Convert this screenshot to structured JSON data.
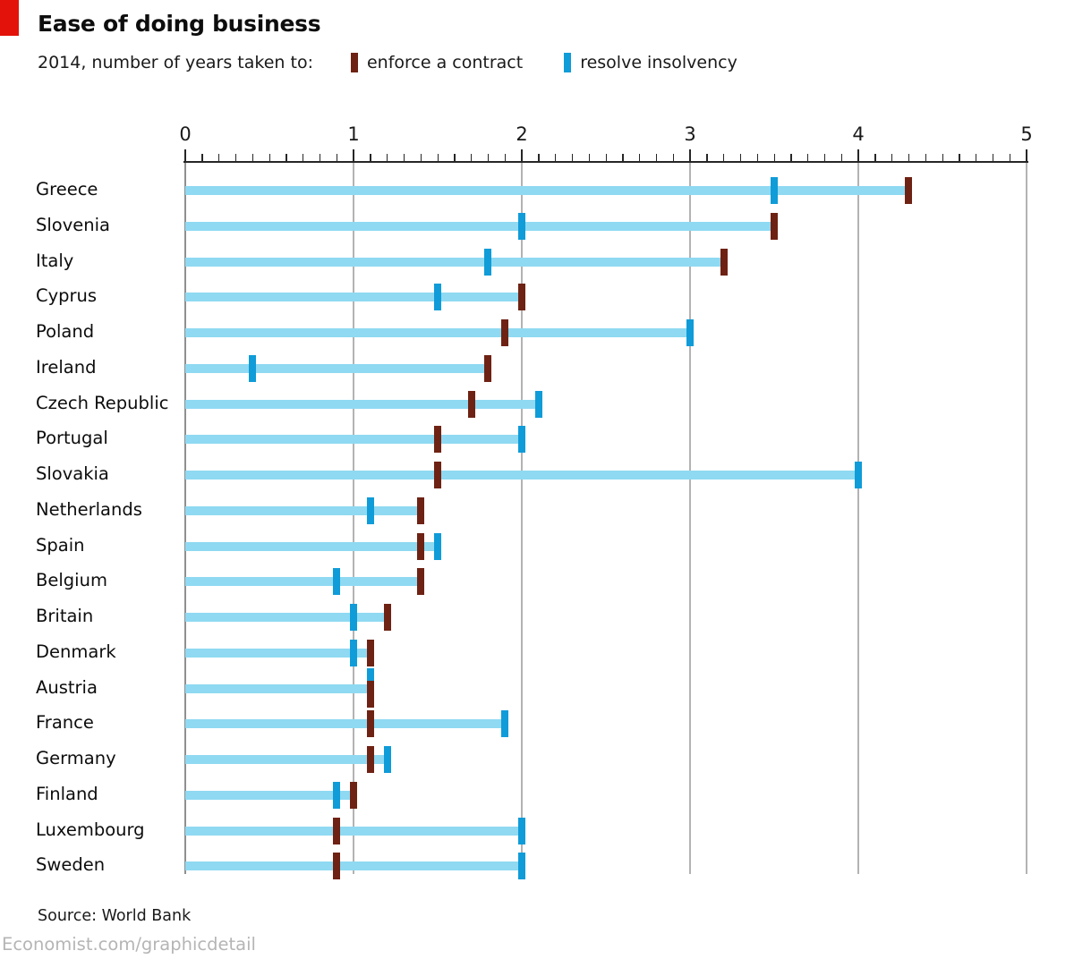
{
  "header": {
    "title": "Ease of doing business",
    "subtitle": "2014, number of years taken to:",
    "legend": [
      {
        "key": "contract",
        "label": "enforce a contract",
        "color": "#6E2213"
      },
      {
        "key": "insolvency",
        "label": "resolve insolvency",
        "color": "#0F9CD8"
      }
    ]
  },
  "footer": {
    "source": "Source: World Bank",
    "credit": "Economist.com/graphicdetail"
  },
  "colors": {
    "brand_red": "#E3120B",
    "bar": "#8FD9F2",
    "contract_marker": "#6E2213",
    "insolvency_marker": "#0F9CD8",
    "gridline": "#B3B3B3",
    "zero_line": "#8F8F8F",
    "axis": "#262626"
  },
  "chart_data": {
    "type": "dumbbell-bar",
    "title": "Ease of doing business",
    "subtitle": "2014, number of years taken to:",
    "xlabel": "years",
    "xlim": [
      0,
      5
    ],
    "x_major_ticks": [
      0,
      1,
      2,
      3,
      4,
      5
    ],
    "x_minor_step": 0.1,
    "grid": "vertical",
    "legend_position": "top",
    "categories": [
      "Greece",
      "Slovenia",
      "Italy",
      "Cyprus",
      "Poland",
      "Ireland",
      "Czech Republic",
      "Portugal",
      "Slovakia",
      "Netherlands",
      "Spain",
      "Belgium",
      "Britain",
      "Denmark",
      "Austria",
      "France",
      "Germany",
      "Finland",
      "Luxembourg",
      "Sweden"
    ],
    "series": [
      {
        "name": "enforce a contract",
        "values": [
          4.3,
          3.5,
          3.2,
          2.0,
          1.9,
          1.8,
          1.7,
          1.5,
          1.5,
          1.4,
          1.4,
          1.4,
          1.2,
          1.1,
          1.1,
          1.1,
          1.1,
          1.0,
          0.9,
          0.9
        ]
      },
      {
        "name": "resolve insolvency",
        "values": [
          3.5,
          2.0,
          1.8,
          1.5,
          3.0,
          0.4,
          2.1,
          2.0,
          4.0,
          1.1,
          1.5,
          0.9,
          1.0,
          1.0,
          1.1,
          1.9,
          1.2,
          0.9,
          2.0,
          2.0
        ]
      }
    ]
  }
}
